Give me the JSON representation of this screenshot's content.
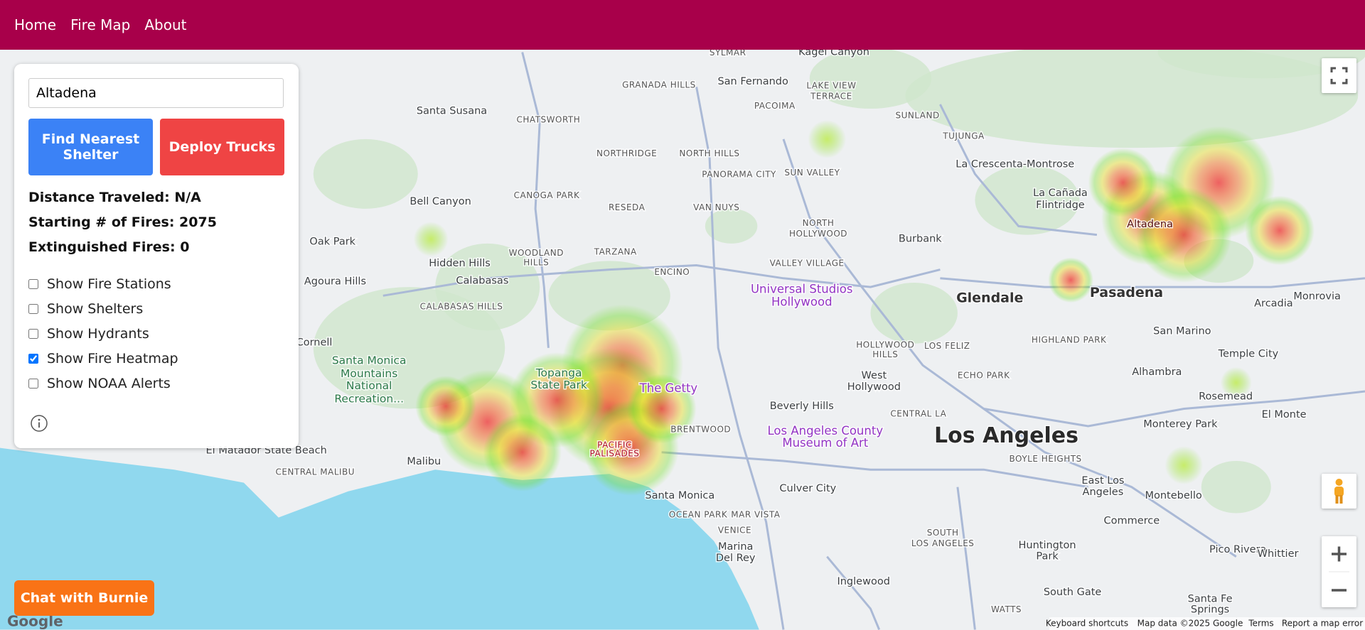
{
  "nav": [
    "Home",
    "Fire Map",
    "About"
  ],
  "panel": {
    "search": "Altadena",
    "buttons": [
      "Find Nearest Shelter",
      "Deploy Trucks"
    ],
    "stats": [
      "Distance Traveled: N/A",
      "Starting # of Fires: 2075",
      "Extinguished Fires: 0"
    ],
    "toggles": [
      {
        "label": "Show Fire Stations",
        "checked": false
      },
      {
        "label": "Show Shelters",
        "checked": false
      },
      {
        "label": "Show Hydrants",
        "checked": false
      },
      {
        "label": "Show Fire Heatmap",
        "checked": true
      },
      {
        "label": "Show NOAA Alerts",
        "checked": false
      }
    ]
  },
  "chat_button": "Chat with Burnie",
  "map": {
    "labels": [
      "Sylmar",
      "Kagel Canyon",
      "San Fernando",
      "Granada Hills",
      "Lake View",
      "Terrace",
      "Santa Susana",
      "Chatsworth",
      "Pacoima",
      "Sunland",
      "Tujunga",
      "Northridge",
      "North Hills",
      "Panorama City",
      "Sun Valley",
      "La Crescenta-Montrose",
      "La Cañada",
      "Flintridge",
      "Bell Canyon",
      "Canoga Park",
      "Reseda",
      "Van Nuys",
      "North",
      "Hollywood",
      "Burbank",
      "Altadena",
      "Oak Park",
      "Hidden Hills",
      "Woodland",
      "Hills",
      "Tarzana",
      "Valley Village",
      "Agoura Hills",
      "Calabasas",
      "Encino",
      "Universal Studios",
      "Hollywood",
      "Glendale",
      "Pasadena",
      "Arcadia",
      "Monrovia",
      "Calabasas Hills",
      "Hollywood",
      "Hills",
      "Los Feliz",
      "Highland Park",
      "San Marino",
      "Temple City",
      "Cornell",
      "Santa Monica",
      "Mountains",
      "National",
      "Recreation...",
      "Topanga",
      "State Park",
      "The Getty",
      "West",
      "Hollywood",
      "Echo Park",
      "Alhambra",
      "Rosemead",
      "Beverly Hills",
      "Central LA",
      "Monterey Park",
      "El Monte",
      "Brentwood",
      "Los Angeles County",
      "Museum of Art",
      "Los Angeles",
      "Pacific",
      "Palisades",
      "Boyle Heights",
      "El Matador State Beach",
      "Malibu",
      "Central Malibu",
      "Culver City",
      "Santa Monica",
      "East Los",
      "Angeles",
      "Montebello",
      "Ocean Park",
      "Mar Vista",
      "Commerce",
      "Venice",
      "Marina",
      "Del Rey",
      "South",
      "Los Angeles",
      "Huntington",
      "Park",
      "Pico Rivera",
      "Whittier",
      "Inglewood",
      "South Gate",
      "Watts",
      "Santa Fe",
      "Springs"
    ],
    "footer": [
      "Keyboard shortcuts",
      "Map data ©2025 Google",
      "Terms",
      "Report a map error"
    ],
    "logo": "Google"
  }
}
